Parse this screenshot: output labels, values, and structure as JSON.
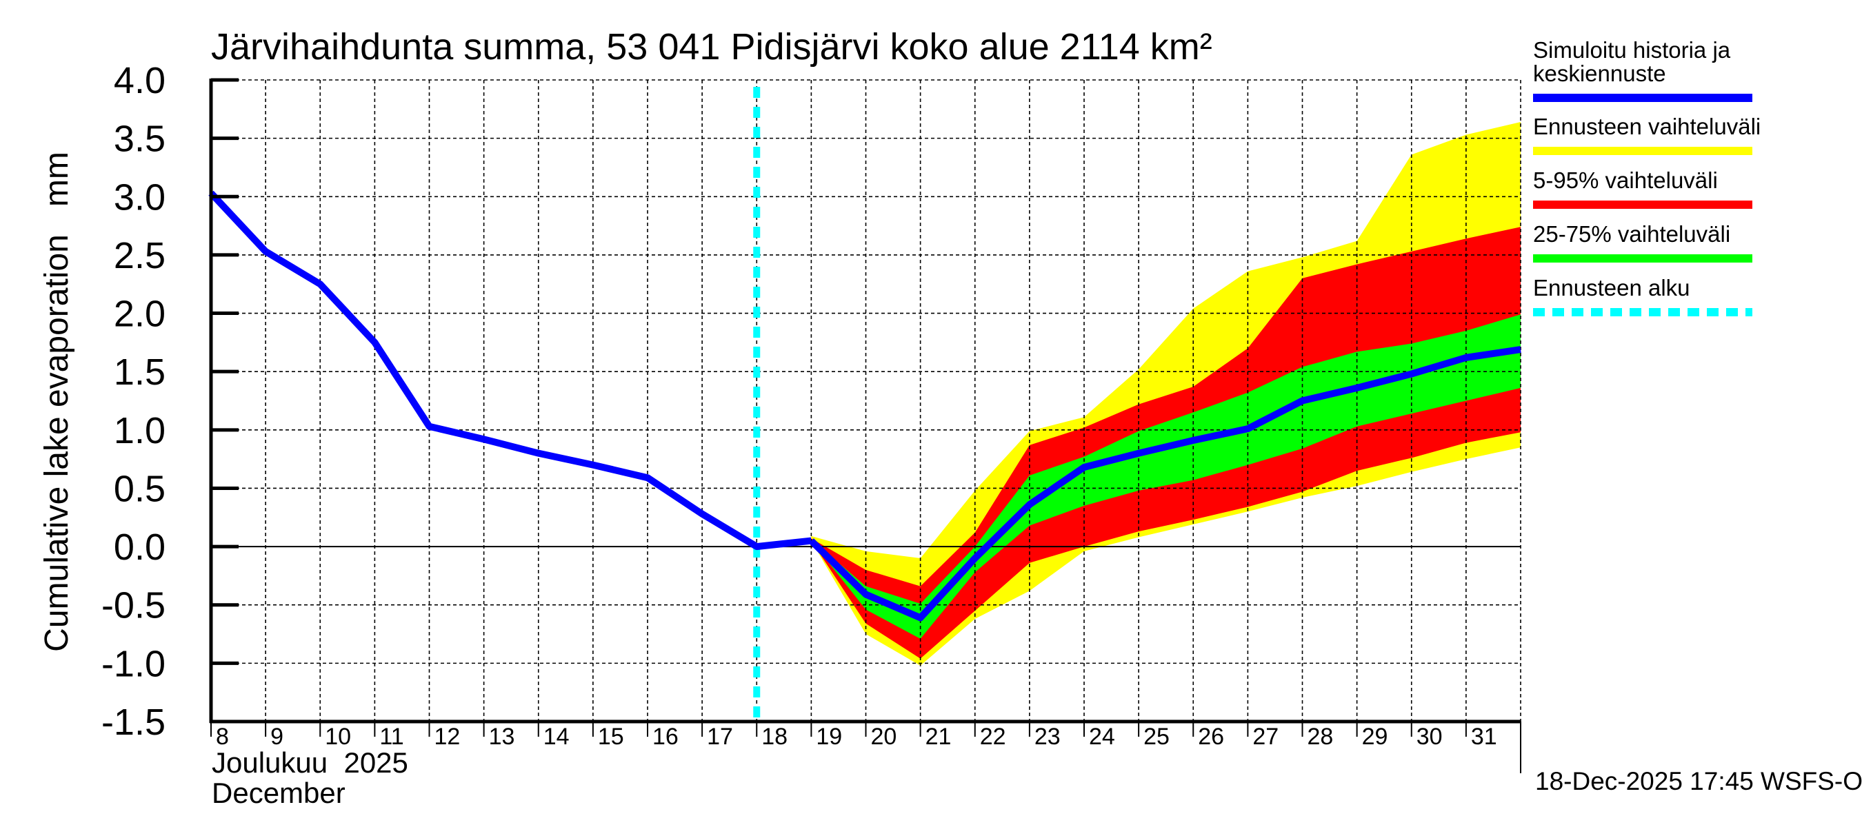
{
  "chart_data": {
    "type": "area",
    "title": "Järvihaihdunta summa, 53 041 Pidisjärvi koko alue 2114 km²",
    "ylabel": "Cumulative lake evaporation   mm",
    "xlabel_line1": "Joulukuu  2025",
    "xlabel_line2": "December",
    "ylim": [
      -1.5,
      4.0
    ],
    "yticks": [
      -1.5,
      -1.0,
      -0.5,
      0.0,
      0.5,
      1.0,
      1.5,
      2.0,
      2.5,
      3.0,
      3.5,
      4.0
    ],
    "ytick_labels": [
      "-1.5",
      "-1.0",
      "-0.5",
      "0.0",
      "0.5",
      "1.0",
      "1.5",
      "2.0",
      "2.5",
      "3.0",
      "3.5",
      "4.0"
    ],
    "xlim": [
      8,
      32
    ],
    "xticks": [
      8,
      9,
      10,
      11,
      12,
      13,
      14,
      15,
      16,
      17,
      18,
      19,
      20,
      21,
      22,
      23,
      24,
      25,
      26,
      27,
      28,
      29,
      30,
      31
    ],
    "xtick_labels": [
      "8",
      "9",
      "10",
      "11",
      "12",
      "13",
      "14",
      "15",
      "16",
      "17",
      "18",
      "19",
      "20",
      "21",
      "22",
      "23",
      "24",
      "25",
      "26",
      "27",
      "28",
      "29",
      "30",
      "31"
    ],
    "grid": true,
    "forecast_start_day": 18,
    "history": {
      "name": "Simuloitu historia ja keskiennuste",
      "x": [
        8,
        9,
        10,
        11,
        12,
        13,
        14,
        15,
        16,
        17,
        18,
        19
      ],
      "y": [
        3.03,
        2.53,
        2.25,
        1.75,
        1.03,
        0.92,
        0.8,
        0.7,
        0.59,
        0.28,
        0.0,
        0.05
      ]
    },
    "forecast": {
      "x": [
        19,
        20,
        21,
        22,
        23,
        24,
        25,
        26,
        27,
        28,
        29,
        30,
        31,
        32
      ],
      "median": [
        0.05,
        -0.41,
        -0.61,
        -0.1,
        0.36,
        0.68,
        0.8,
        0.91,
        1.01,
        1.25,
        1.36,
        1.48,
        1.62,
        1.69
      ],
      "min": [
        0.05,
        -0.75,
        -1.02,
        -0.62,
        -0.38,
        -0.04,
        0.08,
        0.19,
        0.3,
        0.42,
        0.52,
        0.64,
        0.75,
        0.85
      ],
      "max": [
        0.09,
        -0.04,
        -0.1,
        0.48,
        0.99,
        1.11,
        1.52,
        2.04,
        2.36,
        2.48,
        2.62,
        3.36,
        3.53,
        3.64
      ],
      "p5": [
        0.05,
        -0.66,
        -0.96,
        -0.55,
        -0.14,
        0.0,
        0.13,
        0.23,
        0.34,
        0.47,
        0.65,
        0.76,
        0.89,
        0.98
      ],
      "p95": [
        0.07,
        -0.2,
        -0.34,
        0.12,
        0.87,
        1.02,
        1.22,
        1.37,
        1.7,
        2.3,
        2.42,
        2.53,
        2.64,
        2.74
      ],
      "p25": [
        0.05,
        -0.54,
        -0.79,
        -0.22,
        0.18,
        0.35,
        0.48,
        0.57,
        0.7,
        0.84,
        1.03,
        1.14,
        1.25,
        1.36
      ],
      "p75": [
        0.06,
        -0.34,
        -0.49,
        0.0,
        0.61,
        0.77,
        0.99,
        1.15,
        1.32,
        1.54,
        1.67,
        1.74,
        1.85,
        1.99
      ]
    },
    "series": [
      {
        "name": "Simuloitu historia ja keskiennuste",
        "color": "#0000ff",
        "kind": "line"
      },
      {
        "name": "Ennusteen vaihteluväli",
        "color": "#ffff00",
        "kind": "band"
      },
      {
        "name": "5-95% vaihteluväli",
        "color": "#ff0000",
        "kind": "band"
      },
      {
        "name": "25-75% vaihteluväli",
        "color": "#00ff00",
        "kind": "band"
      },
      {
        "name": "Ennusteen alku",
        "color": "#00ffff",
        "kind": "dashed-vline"
      }
    ],
    "legend": {
      "placement": "right",
      "items": [
        {
          "line1": "Simuloitu historia ja",
          "line2": "keskiennuste",
          "color": "#0000ff",
          "style": "solid"
        },
        {
          "line1": "Ennusteen vaihteluväli",
          "line2": "",
          "color": "#ffff00",
          "style": "solid"
        },
        {
          "line1": "5-95% vaihteluväli",
          "line2": "",
          "color": "#ff0000",
          "style": "solid"
        },
        {
          "line1": "25-75% vaihteluväli",
          "line2": "",
          "color": "#00ff00",
          "style": "solid"
        },
        {
          "line1": "Ennusteen alku",
          "line2": "",
          "color": "#00ffff",
          "style": "dashed"
        }
      ]
    }
  },
  "footer": {
    "timestamp": "18-Dec-2025 17:45 WSFS-O"
  }
}
